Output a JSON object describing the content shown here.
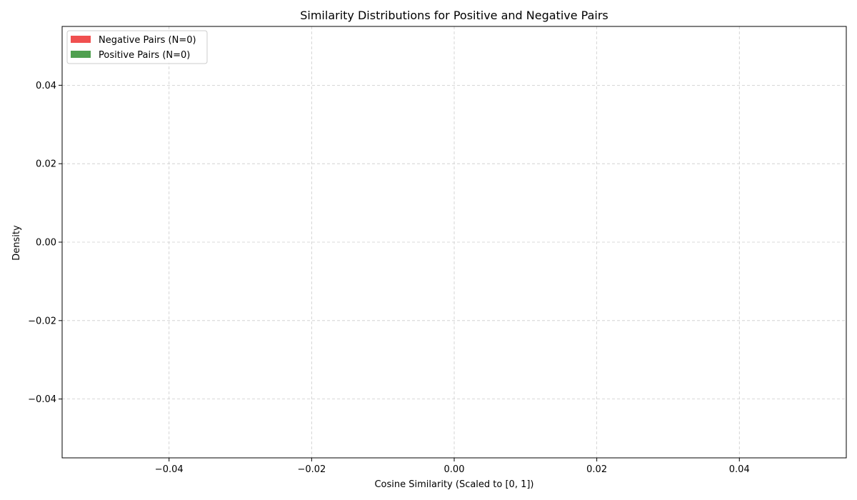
{
  "chart_data": {
    "type": "bar",
    "title": "Similarity Distributions for Positive and Negative Pairs",
    "xlabel": "Cosine Similarity (Scaled to [0, 1])",
    "ylabel": "Density",
    "xlim": [
      -0.055,
      0.055
    ],
    "ylim": [
      -0.055,
      0.055
    ],
    "x_ticks": [
      -0.04,
      -0.02,
      0.0,
      0.02,
      0.04
    ],
    "y_ticks": [
      -0.04,
      -0.02,
      0.0,
      0.02,
      0.04
    ],
    "x_tick_labels": [
      "−0.04",
      "−0.02",
      "0.00",
      "0.02",
      "0.04"
    ],
    "y_tick_labels": [
      "−0.04",
      "−0.02",
      "0.00",
      "0.02",
      "0.04"
    ],
    "grid": true,
    "legend_position": "upper-left",
    "series": [
      {
        "name": "Negative Pairs (N=0)",
        "color": "#f05050",
        "values": []
      },
      {
        "name": "Positive Pairs (N=0)",
        "color": "#50a050",
        "values": []
      }
    ]
  }
}
